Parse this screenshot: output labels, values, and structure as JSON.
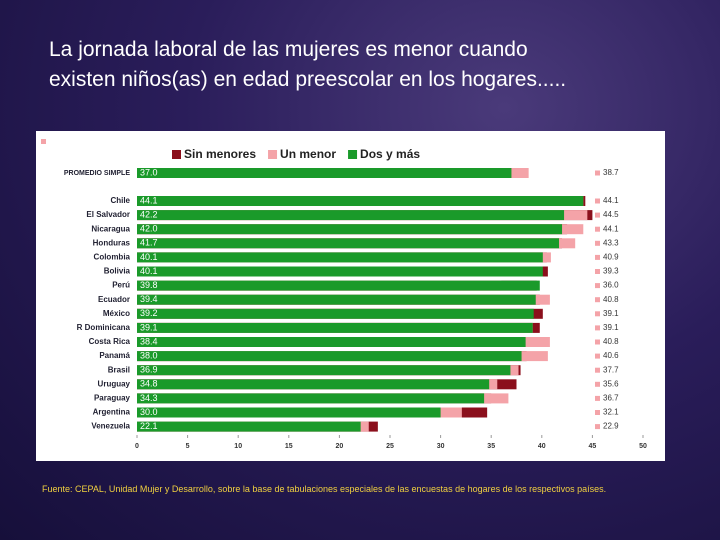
{
  "slide": {
    "title_lines": [
      "La jornada laboral de las mujeres es menor cuando",
      "existen niños(as) en edad preescolar en los hogares....."
    ],
    "source": "Fuente: CEPAL, Unidad Mujer y Desarrollo, sobre la base de tabulaciones especiales de las encuestas de hogares de los respectivos países."
  },
  "chart_data": {
    "type": "hbar_overlap",
    "categories": [
      "PROMEDIO SIMPLE",
      "Chile",
      "El Salvador",
      "Nicaragua",
      "Honduras",
      "Colombia",
      "Bolivia",
      "Perú",
      "Ecuador",
      "México",
      "R Dominicana",
      "Costa Rica",
      "Panamá",
      "Brasil",
      "Uruguay",
      "Paraguay",
      "Argentina",
      "Venezuela"
    ],
    "series": [
      {
        "name": "Sin menores",
        "color": "#8b0f1c",
        "values": [
          38.0,
          44.3,
          45.0,
          42.5,
          42.0,
          40.5,
          40.6,
          39.5,
          39.8,
          40.1,
          39.8,
          39.0,
          38.5,
          37.9,
          37.5,
          35.0,
          34.6,
          23.8
        ]
      },
      {
        "name": "Un menor",
        "color": "#f4a3a8",
        "values": [
          38.7,
          44.1,
          44.5,
          44.1,
          43.3,
          40.9,
          39.3,
          36.0,
          40.8,
          39.1,
          39.1,
          40.8,
          40.6,
          37.7,
          35.6,
          36.7,
          32.1,
          22.9
        ],
        "value_labels": [
          "38.7",
          "44.1",
          "44.5",
          "44.1",
          "43.3",
          "40.9",
          "39.3",
          "36.0",
          "40.8",
          "39.1",
          "39.1",
          "40.8",
          "40.6",
          "37.7",
          "35.6",
          "36.7",
          "32.1",
          "22.9"
        ]
      },
      {
        "name": "Dos y más",
        "color": "#1a9a2a",
        "values": [
          37.0,
          44.1,
          42.2,
          42.0,
          41.7,
          40.1,
          40.1,
          39.8,
          39.4,
          39.2,
          39.1,
          38.4,
          38.0,
          36.9,
          34.8,
          34.3,
          30.0,
          22.1
        ],
        "value_labels": [
          "37.0",
          "44.1",
          "42.2",
          "42.0",
          "41.7",
          "40.1",
          "40.1",
          "39.8",
          "39.4",
          "39.2",
          "39.1",
          "38.4",
          "38.0",
          "36.9",
          "34.8",
          "34.3",
          "30.0",
          "22.1"
        ]
      }
    ],
    "xlim": [
      0,
      50
    ],
    "xticks": [
      0,
      5,
      10,
      15,
      20,
      25,
      30,
      35,
      40,
      45,
      50
    ]
  }
}
